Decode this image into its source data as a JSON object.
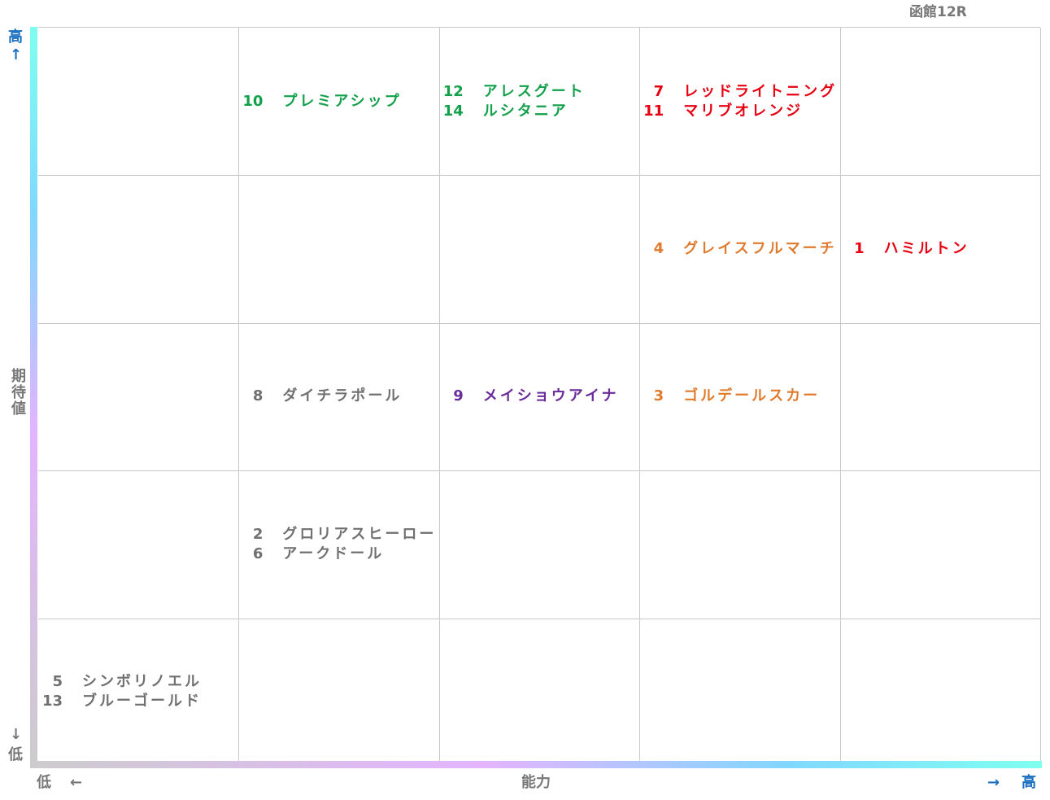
{
  "title": "函館12R",
  "y_axis": {
    "label": "期待値",
    "high": "高",
    "high_arrow": "↑",
    "low": "低",
    "low_arrow": "↓"
  },
  "x_axis": {
    "label": "能力",
    "low": "低",
    "low_arrow": "←",
    "high_arrow": "→",
    "high": "高"
  },
  "rows": [
    [
      [],
      [
        {
          "number": 10,
          "name": "プレミアシップ",
          "color": "#12a04a"
        }
      ],
      [
        {
          "number": 12,
          "name": "アレスグート",
          "color": "#12a04a"
        },
        {
          "number": 14,
          "name": "ルシタニア",
          "color": "#12a04a"
        }
      ],
      [
        {
          "number": 7,
          "name": "レッドライトニング",
          "color": "#e60012"
        },
        {
          "number": 11,
          "name": "マリブオレンジ",
          "color": "#e60012"
        }
      ],
      []
    ],
    [
      [],
      [],
      [],
      [
        {
          "number": 4,
          "name": "グレイスフルマーチ",
          "color": "#e07b2e"
        }
      ],
      [
        {
          "number": 1,
          "name": "ハミルトン",
          "color": "#e60012"
        }
      ]
    ],
    [
      [],
      [
        {
          "number": 8,
          "name": "ダイチラポール",
          "color": "#707070"
        }
      ],
      [
        {
          "number": 9,
          "name": "メイショウアイナ",
          "color": "#6a2c9a"
        }
      ],
      [
        {
          "number": 3,
          "name": "ゴルデールスカー",
          "color": "#e07b2e"
        }
      ],
      []
    ],
    [
      [],
      [
        {
          "number": 2,
          "name": "グロリアスヒーロー",
          "color": "#707070"
        },
        {
          "number": 6,
          "name": "アークドール",
          "color": "#707070"
        }
      ],
      [],
      [],
      []
    ],
    [
      [
        {
          "number": 5,
          "name": "シンボリノエル",
          "color": "#707070"
        },
        {
          "number": 13,
          "name": "ブルーゴールド",
          "color": "#707070"
        }
      ],
      [],
      [],
      [],
      []
    ]
  ]
}
